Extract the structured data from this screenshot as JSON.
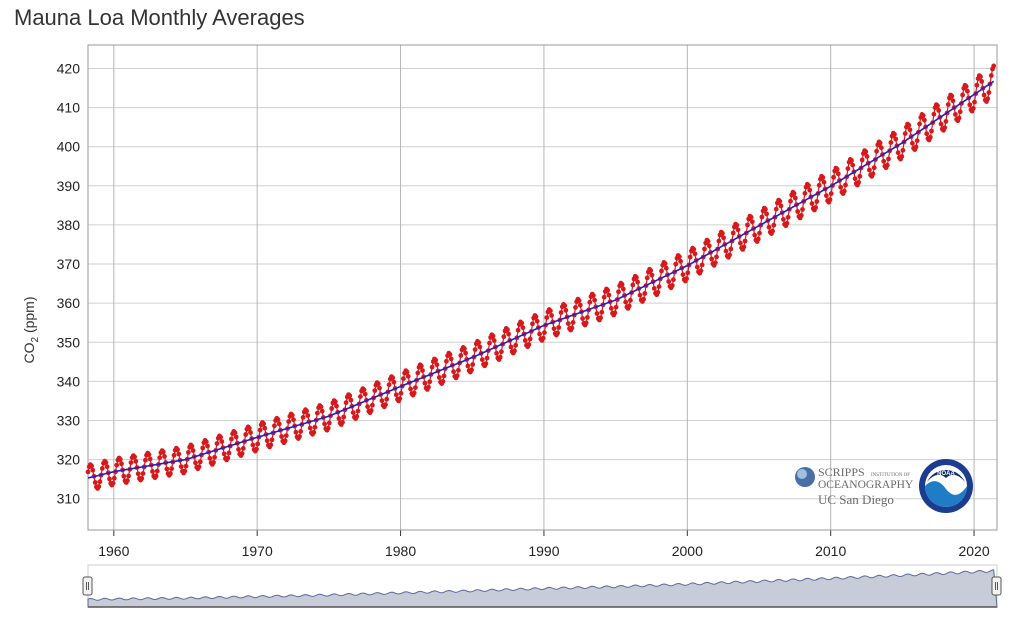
{
  "chart_data": {
    "type": "line",
    "title": "Mauna Loa Monthly Averages",
    "ylabel_main": "CO",
    "ylabel_sub": "2",
    "ylabel_unit": " (ppm)",
    "xlim": [
      1958.2,
      2021.6
    ],
    "ylim": [
      302,
      426
    ],
    "yticks": [
      310,
      320,
      330,
      340,
      350,
      360,
      370,
      380,
      390,
      400,
      410,
      420
    ],
    "xticks": [
      1960,
      1970,
      1980,
      1990,
      2000,
      2010,
      2020
    ],
    "grid": true,
    "series": [
      {
        "role": "monthly-average",
        "color": "#d7191c",
        "marker": "circle",
        "trend_points": [
          [
            1958.2,
            315.3
          ],
          [
            1960,
            316.9
          ],
          [
            1965,
            320.0
          ],
          [
            1970,
            325.7
          ],
          [
            1975,
            331.1
          ],
          [
            1980,
            338.7
          ],
          [
            1985,
            346.1
          ],
          [
            1990,
            354.3
          ],
          [
            1995,
            360.8
          ],
          [
            2000,
            369.6
          ],
          [
            2005,
            379.8
          ],
          [
            2010,
            389.9
          ],
          [
            2015,
            401.0
          ],
          [
            2021.4,
            416.8
          ]
        ],
        "seasonal_amplitude_ppm": 6.5
      },
      {
        "role": "deseasonalized-trend",
        "color": "#1f1fd0",
        "trend_points": [
          [
            1958.2,
            315.3
          ],
          [
            1960,
            316.9
          ],
          [
            1965,
            320.0
          ],
          [
            1970,
            325.7
          ],
          [
            1975,
            331.1
          ],
          [
            1980,
            338.7
          ],
          [
            1985,
            346.1
          ],
          [
            1990,
            354.3
          ],
          [
            1995,
            360.8
          ],
          [
            2000,
            369.6
          ],
          [
            2005,
            379.8
          ],
          [
            2010,
            389.9
          ],
          [
            2015,
            401.0
          ],
          [
            2021.4,
            416.8
          ]
        ]
      }
    ]
  },
  "logos": {
    "scripps_line1": "SCRIPPS",
    "scripps_line1_small": "INSTITUTION OF",
    "scripps_line2": "OCEANOGRAPHY",
    "ucsd": "UC San Diego",
    "noaa": "NOAA"
  },
  "navigator": {
    "range_start": 1958.2,
    "range_end": 2021.6
  },
  "colors": {
    "monthly": "#d7191c",
    "trend": "#1f1fd0",
    "grid": "#d0d0d0",
    "navigator_fill": "#c8ccd8"
  }
}
